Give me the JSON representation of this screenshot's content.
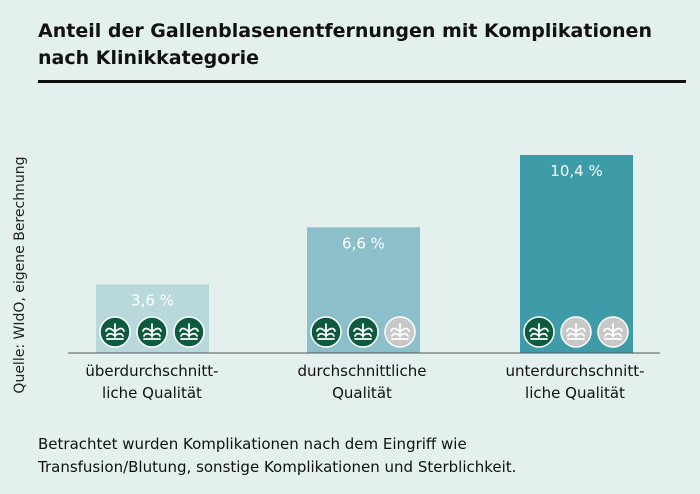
{
  "title": {
    "line1": "Anteil der Gallenblasenentfernungen mit Komplikationen",
    "line2": "nach Klinikkategorie"
  },
  "source": "Quelle: WIdO, eigene Berechnung",
  "footnote": {
    "line1": "Betrachtet wurden Komplikationen nach dem Eingriff wie",
    "line2": "Transfusion/Blutung, sonstige Komplikationen und Sterblichkeit."
  },
  "colors": {
    "bar_1": "#b8d8dc",
    "bar_2": "#8dbfca",
    "bar_3": "#3e9ba8",
    "icon_active": "#0d5a3e",
    "icon_inactive": "#c8c8c8"
  },
  "icons": {
    "active": "aok-tree-icon-filled",
    "inactive": "aok-tree-icon-grey"
  },
  "categories": [
    {
      "line1": "überdurchschnitt-",
      "line2": "liche Qualität"
    },
    {
      "line1": "durchschnittliche",
      "line2": "Qualität"
    },
    {
      "line1": "unterdurchschnitt-",
      "line2": "liche Qualität"
    }
  ],
  "chart_data": {
    "type": "bar",
    "title": "Anteil der Gallenblasenentfernungen mit Komplikationen nach Klinikkategorie",
    "categories": [
      "überdurchschnittliche Qualität",
      "durchschnittliche Qualität",
      "unterdurchschnittliche Qualität"
    ],
    "values": [
      3.6,
      6.6,
      10.4
    ],
    "value_labels": [
      "3,6 %",
      "6,6 %",
      "10,4 %"
    ],
    "unit": "%",
    "rating_icons_active": [
      3,
      2,
      1
    ],
    "rating_icons_total": 3,
    "ylim": [
      0,
      10.4
    ],
    "grid": false,
    "axis_ticks": false
  }
}
